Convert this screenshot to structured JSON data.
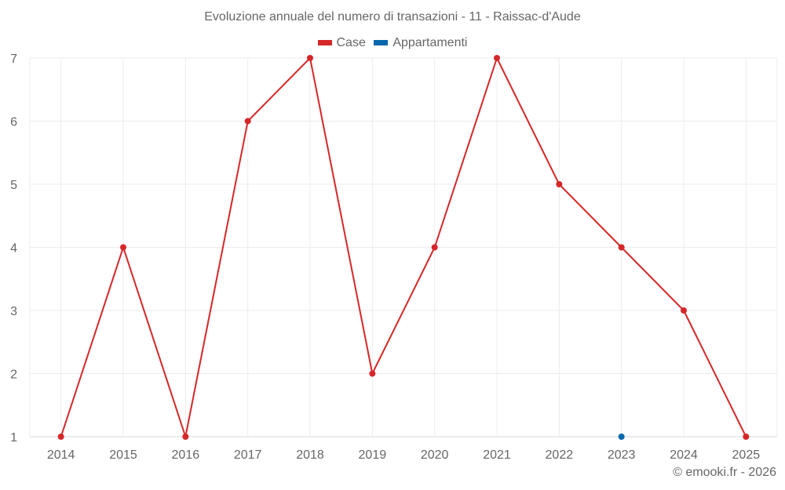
{
  "chart_data": {
    "type": "line",
    "title": "Evoluzione annuale del numero di transazioni - 11 - Raissac-d'Aude",
    "xlabel": "",
    "ylabel": "",
    "categories": [
      "2014",
      "2015",
      "2016",
      "2017",
      "2018",
      "2019",
      "2020",
      "2021",
      "2022",
      "2023",
      "2024",
      "2025"
    ],
    "series": [
      {
        "name": "Case",
        "color": "#d62728",
        "values": [
          1,
          4,
          1,
          6,
          7,
          2,
          4,
          7,
          5,
          4,
          3,
          1
        ]
      },
      {
        "name": "Appartamenti",
        "color": "#0868ac",
        "values": [
          null,
          null,
          null,
          null,
          null,
          null,
          null,
          null,
          null,
          1,
          null,
          null
        ]
      }
    ],
    "yticks": [
      1,
      2,
      3,
      4,
      5,
      6,
      7
    ],
    "ylim": [
      1,
      7
    ],
    "grid": true,
    "legend_position": "top"
  },
  "legend": {
    "items": [
      {
        "label": "Case",
        "color": "#d62728"
      },
      {
        "label": "Appartamenti",
        "color": "#0868ac"
      }
    ]
  },
  "credit": "© emooki.fr - 2026"
}
